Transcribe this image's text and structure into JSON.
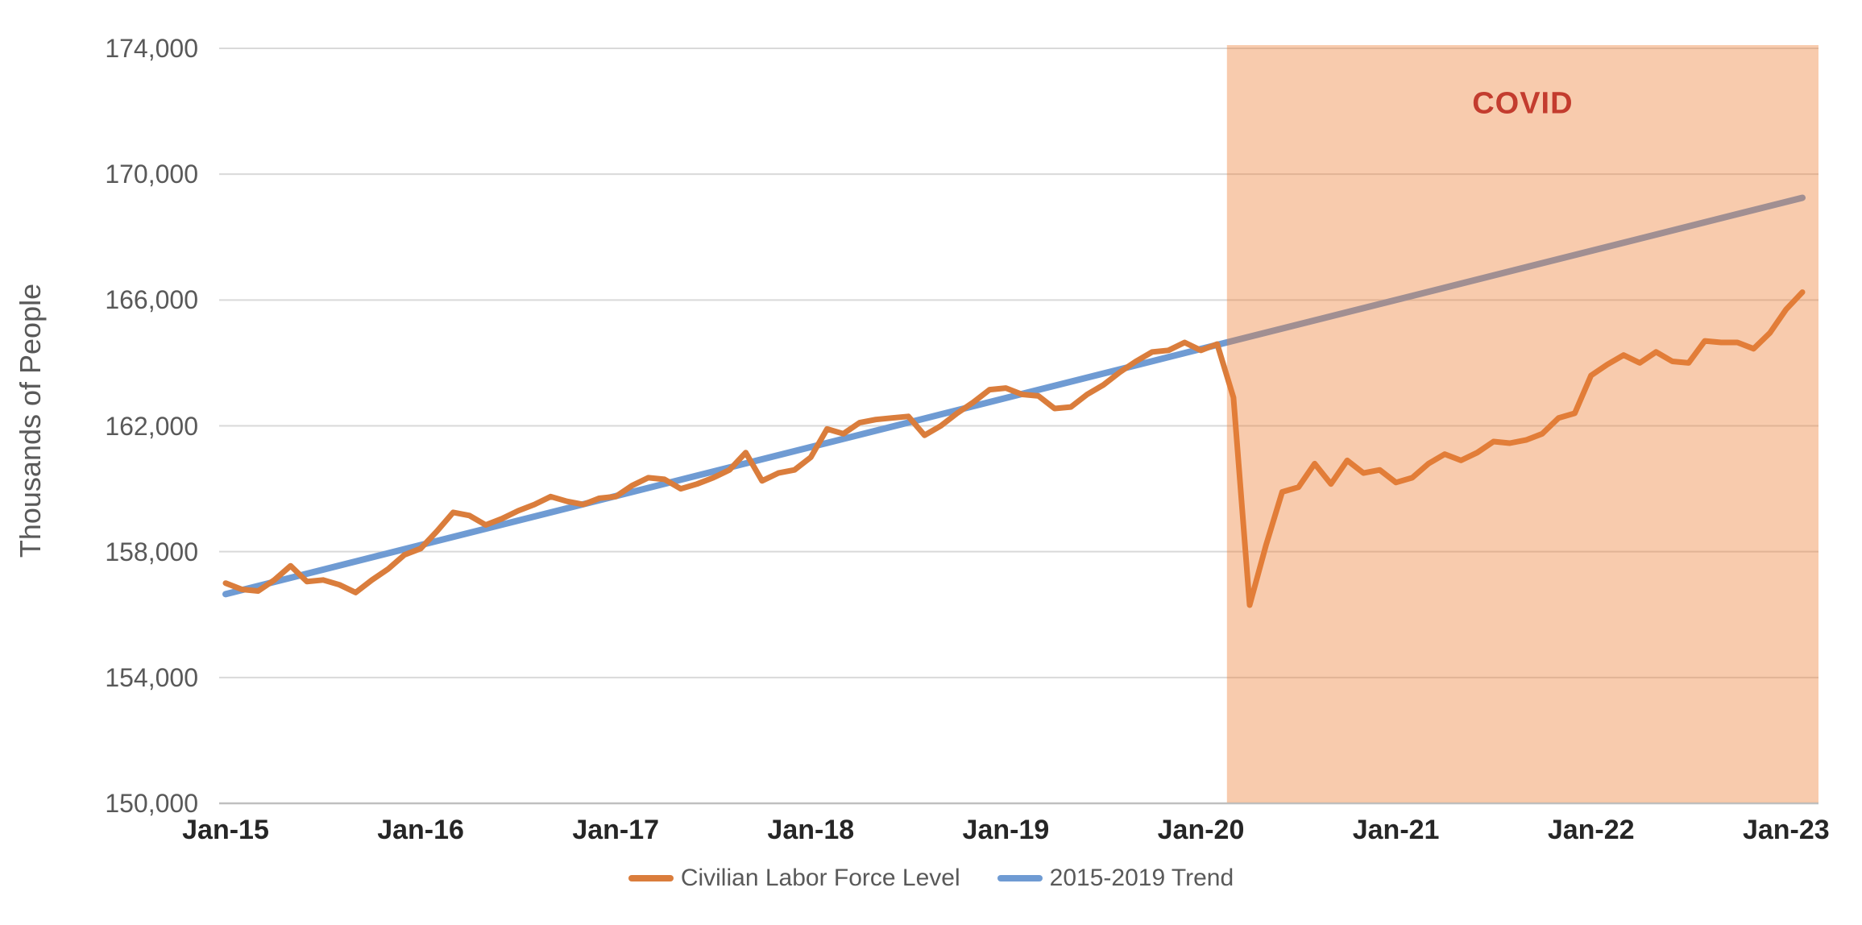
{
  "chart_data": {
    "type": "line",
    "title": "",
    "ylabel": "Thousands of People",
    "xlabel": "",
    "ylim": [
      150000,
      174000
    ],
    "grid": "horizontal",
    "x_unit": "months from Jan-2015 (monthly data, Jan-2015 through Feb-2023)",
    "y_ticks": [
      {
        "value": 150000,
        "label": "150,000"
      },
      {
        "value": 154000,
        "label": "154,000"
      },
      {
        "value": 158000,
        "label": "158,000"
      },
      {
        "value": 162000,
        "label": "162,000"
      },
      {
        "value": 166000,
        "label": "166,000"
      },
      {
        "value": 170000,
        "label": "170,000"
      },
      {
        "value": 174000,
        "label": "174,000"
      }
    ],
    "x_ticks": [
      {
        "month": 0,
        "label": "Jan-15"
      },
      {
        "month": 12,
        "label": "Jan-16"
      },
      {
        "month": 24,
        "label": "Jan-17"
      },
      {
        "month": 36,
        "label": "Jan-18"
      },
      {
        "month": 48,
        "label": "Jan-19"
      },
      {
        "month": 60,
        "label": "Jan-20"
      },
      {
        "month": 72,
        "label": "Jan-21"
      },
      {
        "month": 84,
        "label": "Jan-22"
      },
      {
        "month": 96,
        "label": "Jan-23"
      }
    ],
    "series": [
      {
        "name": "Civilian Labor Force Level",
        "color": "#DA7D3C",
        "stroke_width": 7,
        "values": [
          157000,
          156800,
          156750,
          157100,
          157550,
          157050,
          157100,
          156950,
          156700,
          157100,
          157450,
          157900,
          158100,
          158650,
          159250,
          159150,
          158850,
          159050,
          159300,
          159500,
          159750,
          159600,
          159500,
          159700,
          159750,
          160100,
          160350,
          160300,
          160000,
          160150,
          160350,
          160600,
          161150,
          160250,
          160500,
          160600,
          161000,
          161900,
          161750,
          162100,
          162200,
          162250,
          162300,
          161700,
          162000,
          162400,
          162750,
          163150,
          163200,
          163000,
          162950,
          162550,
          162600,
          163000,
          163300,
          163700,
          164050,
          164350,
          164400,
          164650,
          164400,
          164600,
          162900,
          156300,
          158200,
          159900,
          160050,
          160800,
          160150,
          160900,
          160500,
          160600,
          160200,
          160350,
          160800,
          161100,
          160900,
          161150,
          161500,
          161450,
          161550,
          161750,
          162250,
          162400,
          163600,
          163950,
          164250,
          164000,
          164350,
          164050,
          164000,
          164700,
          164650,
          164650,
          164450,
          164950,
          165700,
          166250
        ]
      },
      {
        "name": "2015-2019 Trend",
        "color": "#6F9BD3",
        "stroke_width": 8,
        "trend": {
          "start_month": 0,
          "start_value": 156650,
          "end_month": 97,
          "end_value": 169250
        }
      }
    ],
    "covid_region": {
      "label": "COVID",
      "label_color": "#C33C2E",
      "fill": "#ED7D31",
      "fill_opacity": 0.4,
      "start_month_index": 61.6,
      "covers": "from ~Feb/Mar-2020 to right edge of plot"
    },
    "gridline_color": "#D9D9D9",
    "axis_line_color": "#BFBFBF",
    "legend_position": "bottom-center"
  },
  "legend": {
    "items": [
      {
        "label": "Civilian Labor Force Level",
        "color": "#DA7D3C"
      },
      {
        "label": "2015-2019 Trend",
        "color": "#6F9BD3"
      }
    ]
  }
}
